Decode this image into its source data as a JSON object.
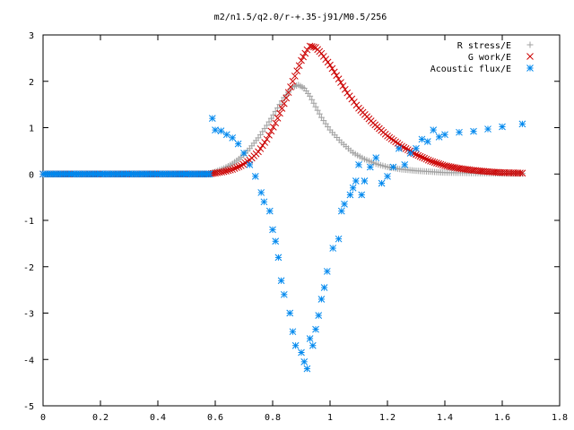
{
  "chart_data": {
    "type": "scatter",
    "title": "m2/n1.5/q2.0/r-+.35-j91/M0.5/256",
    "xlabel": "",
    "ylabel": "",
    "xlim": [
      0,
      1.8
    ],
    "ylim": [
      -5,
      3
    ],
    "xticks": [
      "0",
      "0.2",
      "0.4",
      "0.6",
      "0.8",
      "1",
      "1.2",
      "1.4",
      "1.6",
      "1.8"
    ],
    "yticks": [
      "3",
      "2",
      "1",
      "0",
      "-1",
      "-2",
      "-3",
      "-4",
      "-5"
    ],
    "grid": false,
    "legend_position": "top-right",
    "series": [
      {
        "name": "R stress/E",
        "marker": "plus",
        "color": "#a0a0a0",
        "points": [
          [
            0.0,
            0
          ],
          [
            0.1,
            0
          ],
          [
            0.2,
            0
          ],
          [
            0.3,
            0
          ],
          [
            0.4,
            0
          ],
          [
            0.5,
            0
          ],
          [
            0.58,
            0
          ],
          [
            0.6,
            0.05
          ],
          [
            0.63,
            0.12
          ],
          [
            0.66,
            0.22
          ],
          [
            0.69,
            0.36
          ],
          [
            0.72,
            0.55
          ],
          [
            0.75,
            0.78
          ],
          [
            0.78,
            1.05
          ],
          [
            0.81,
            1.35
          ],
          [
            0.84,
            1.65
          ],
          [
            0.87,
            1.88
          ],
          [
            0.89,
            1.92
          ],
          [
            0.91,
            1.85
          ],
          [
            0.93,
            1.68
          ],
          [
            0.95,
            1.45
          ],
          [
            0.97,
            1.22
          ],
          [
            1.0,
            0.95
          ],
          [
            1.04,
            0.68
          ],
          [
            1.08,
            0.46
          ],
          [
            1.12,
            0.32
          ],
          [
            1.16,
            0.22
          ],
          [
            1.2,
            0.15
          ],
          [
            1.25,
            0.1
          ],
          [
            1.3,
            0.07
          ],
          [
            1.35,
            0.05
          ],
          [
            1.4,
            0.03
          ],
          [
            1.5,
            0.02
          ],
          [
            1.6,
            0.01
          ],
          [
            1.67,
            0.01
          ]
        ]
      },
      {
        "name": "G work/E",
        "marker": "cross",
        "color": "#cc0000",
        "points": [
          [
            0.0,
            0
          ],
          [
            0.1,
            0
          ],
          [
            0.2,
            0
          ],
          [
            0.3,
            0
          ],
          [
            0.4,
            0
          ],
          [
            0.5,
            0
          ],
          [
            0.58,
            0
          ],
          [
            0.6,
            0.02
          ],
          [
            0.63,
            0.05
          ],
          [
            0.66,
            0.1
          ],
          [
            0.69,
            0.18
          ],
          [
            0.72,
            0.3
          ],
          [
            0.75,
            0.48
          ],
          [
            0.78,
            0.75
          ],
          [
            0.81,
            1.1
          ],
          [
            0.84,
            1.52
          ],
          [
            0.87,
            2.0
          ],
          [
            0.9,
            2.45
          ],
          [
            0.92,
            2.68
          ],
          [
            0.93,
            2.76
          ],
          [
            0.95,
            2.73
          ],
          [
            0.97,
            2.6
          ],
          [
            1.0,
            2.35
          ],
          [
            1.03,
            2.05
          ],
          [
            1.06,
            1.75
          ],
          [
            1.1,
            1.42
          ],
          [
            1.15,
            1.1
          ],
          [
            1.2,
            0.82
          ],
          [
            1.25,
            0.6
          ],
          [
            1.3,
            0.42
          ],
          [
            1.35,
            0.28
          ],
          [
            1.4,
            0.18
          ],
          [
            1.45,
            0.12
          ],
          [
            1.5,
            0.08
          ],
          [
            1.55,
            0.05
          ],
          [
            1.6,
            0.03
          ],
          [
            1.67,
            0.02
          ]
        ]
      },
      {
        "name": "Acoustic flux/E",
        "marker": "star",
        "color": "#0088ee",
        "points": [
          [
            0.0,
            0
          ],
          [
            0.1,
            0
          ],
          [
            0.2,
            0
          ],
          [
            0.3,
            0
          ],
          [
            0.4,
            0
          ],
          [
            0.5,
            0
          ],
          [
            0.58,
            0
          ],
          [
            0.59,
            1.2
          ],
          [
            0.6,
            0.95
          ],
          [
            0.62,
            0.93
          ],
          [
            0.64,
            0.85
          ],
          [
            0.66,
            0.78
          ],
          [
            0.68,
            0.65
          ],
          [
            0.7,
            0.45
          ],
          [
            0.72,
            0.2
          ],
          [
            0.74,
            -0.05
          ],
          [
            0.76,
            -0.4
          ],
          [
            0.77,
            -0.6
          ],
          [
            0.79,
            -0.8
          ],
          [
            0.8,
            -1.2
          ],
          [
            0.81,
            -1.45
          ],
          [
            0.82,
            -1.8
          ],
          [
            0.83,
            -2.3
          ],
          [
            0.84,
            -2.6
          ],
          [
            0.86,
            -3.0
          ],
          [
            0.87,
            -3.4
          ],
          [
            0.88,
            -3.7
          ],
          [
            0.9,
            -3.85
          ],
          [
            0.91,
            -4.05
          ],
          [
            0.92,
            -4.2
          ],
          [
            0.93,
            -3.55
          ],
          [
            0.94,
            -3.7
          ],
          [
            0.95,
            -3.35
          ],
          [
            0.96,
            -3.05
          ],
          [
            0.97,
            -2.7
          ],
          [
            0.98,
            -2.45
          ],
          [
            0.99,
            -2.1
          ],
          [
            1.01,
            -1.6
          ],
          [
            1.03,
            -1.4
          ],
          [
            1.04,
            -0.8
          ],
          [
            1.05,
            -0.65
          ],
          [
            1.07,
            -0.45
          ],
          [
            1.08,
            -0.3
          ],
          [
            1.09,
            -0.15
          ],
          [
            1.1,
            0.2
          ],
          [
            1.11,
            -0.45
          ],
          [
            1.12,
            -0.15
          ],
          [
            1.14,
            0.15
          ],
          [
            1.16,
            0.35
          ],
          [
            1.18,
            -0.2
          ],
          [
            1.2,
            -0.05
          ],
          [
            1.22,
            0.15
          ],
          [
            1.24,
            0.55
          ],
          [
            1.26,
            0.2
          ],
          [
            1.28,
            0.45
          ],
          [
            1.3,
            0.55
          ],
          [
            1.32,
            0.75
          ],
          [
            1.34,
            0.7
          ],
          [
            1.36,
            0.95
          ],
          [
            1.38,
            0.8
          ],
          [
            1.4,
            0.85
          ],
          [
            1.45,
            0.9
          ],
          [
            1.5,
            0.92
          ],
          [
            1.55,
            0.97
          ],
          [
            1.6,
            1.02
          ],
          [
            1.67,
            1.08
          ]
        ]
      }
    ]
  }
}
